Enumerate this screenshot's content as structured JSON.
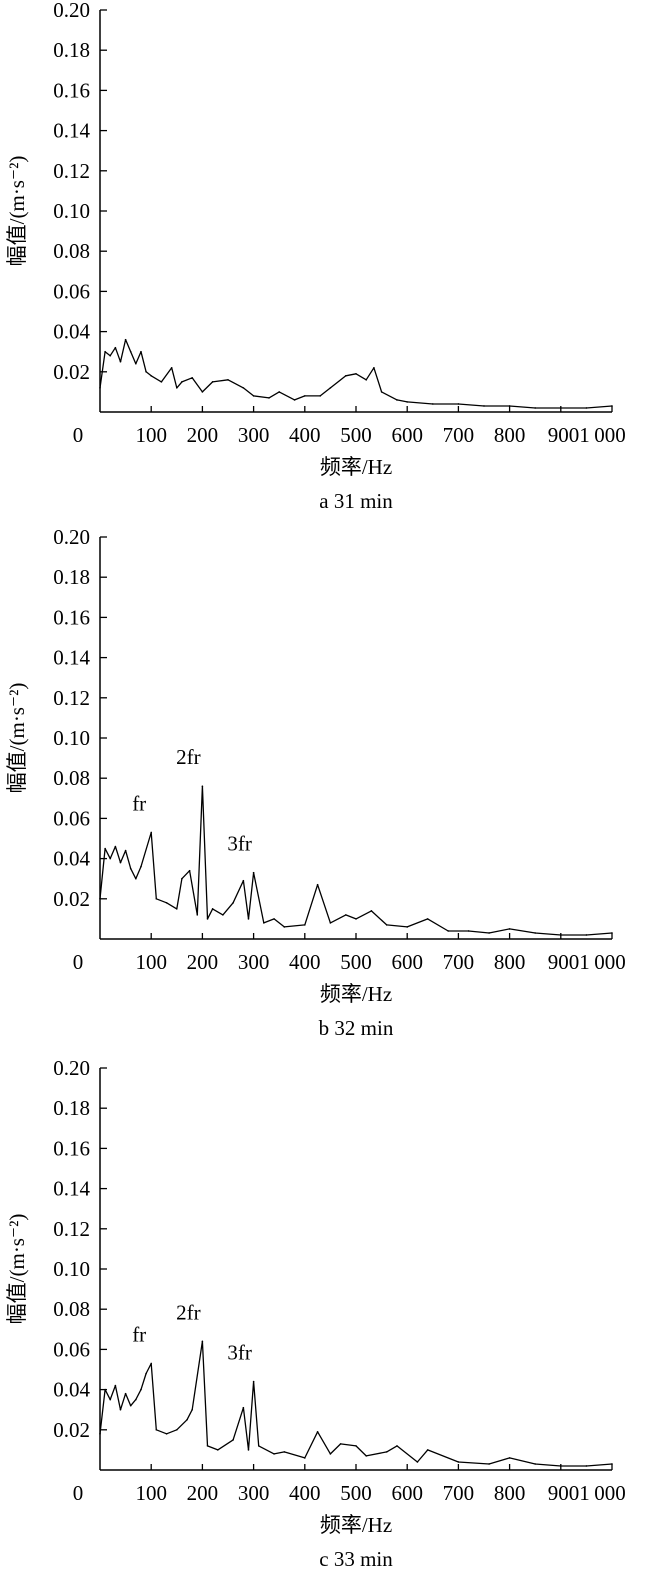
{
  "chart_data": [
    {
      "type": "line",
      "panel": "a",
      "caption": "a  31 min",
      "xlabel": "频率/Hz",
      "ylabel": "幅值/(m·s⁻²)",
      "xlim": [
        0,
        1000
      ],
      "ylim": [
        0,
        0.2
      ],
      "x_ticks": [
        "0",
        "100",
        "200",
        "300",
        "400",
        "500",
        "600",
        "700",
        "800",
        "9001",
        "000"
      ],
      "y_ticks": [
        "0.20",
        "0.18",
        "0.16",
        "0.14",
        "0.12",
        "0.10",
        "0.08",
        "0.06",
        "0.04",
        "0.02"
      ],
      "grid": false,
      "annotations": [],
      "series": [
        {
          "x": [
            0,
            10,
            20,
            30,
            40,
            50,
            60,
            70,
            80,
            90,
            100,
            120,
            140,
            150,
            160,
            180,
            200,
            220,
            250,
            280,
            300,
            330,
            350,
            380,
            400,
            430,
            450,
            480,
            500,
            520,
            535,
            550,
            580,
            600,
            650,
            700,
            750,
            800,
            850,
            900,
            950,
            1000
          ],
          "y": [
            0.012,
            0.03,
            0.028,
            0.032,
            0.025,
            0.036,
            0.03,
            0.024,
            0.03,
            0.02,
            0.018,
            0.015,
            0.022,
            0.012,
            0.015,
            0.017,
            0.01,
            0.015,
            0.016,
            0.012,
            0.008,
            0.007,
            0.01,
            0.006,
            0.008,
            0.008,
            0.012,
            0.018,
            0.019,
            0.016,
            0.022,
            0.01,
            0.006,
            0.005,
            0.004,
            0.004,
            0.003,
            0.003,
            0.002,
            0.002,
            0.002,
            0.003
          ]
        }
      ]
    },
    {
      "type": "line",
      "panel": "b",
      "caption": "b  32 min",
      "xlabel": "频率/Hz",
      "ylabel": "幅值/(m·s⁻²)",
      "xlim": [
        0,
        1000
      ],
      "ylim": [
        0,
        0.2
      ],
      "x_ticks": [
        "0",
        "100",
        "200",
        "300",
        "400",
        "500",
        "600",
        "700",
        "800",
        "9001",
        "000"
      ],
      "y_ticks": [
        "0.20",
        "0.18",
        "0.16",
        "0.14",
        "0.12",
        "0.10",
        "0.08",
        "0.06",
        "0.04",
        "0.02"
      ],
      "grid": false,
      "annotations": [
        {
          "text": "fr",
          "x": 100,
          "y": 0.053
        },
        {
          "text": "2fr",
          "x": 200,
          "y": 0.076
        },
        {
          "text": "3fr",
          "x": 300,
          "y": 0.033
        }
      ],
      "series": [
        {
          "x": [
            0,
            10,
            20,
            30,
            40,
            50,
            60,
            70,
            80,
            100,
            110,
            130,
            150,
            160,
            175,
            190,
            200,
            210,
            220,
            240,
            260,
            280,
            290,
            300,
            320,
            340,
            360,
            400,
            425,
            450,
            480,
            500,
            530,
            560,
            600,
            640,
            680,
            720,
            760,
            800,
            850,
            900,
            950,
            1000
          ],
          "y": [
            0.02,
            0.045,
            0.04,
            0.046,
            0.038,
            0.044,
            0.035,
            0.03,
            0.036,
            0.053,
            0.02,
            0.018,
            0.015,
            0.03,
            0.034,
            0.012,
            0.076,
            0.01,
            0.015,
            0.012,
            0.018,
            0.029,
            0.01,
            0.033,
            0.008,
            0.01,
            0.006,
            0.007,
            0.027,
            0.008,
            0.012,
            0.01,
            0.014,
            0.007,
            0.006,
            0.01,
            0.004,
            0.004,
            0.003,
            0.005,
            0.003,
            0.002,
            0.002,
            0.003
          ]
        }
      ]
    },
    {
      "type": "line",
      "panel": "c",
      "caption": "c  33 min",
      "xlabel": "频率/Hz",
      "ylabel": "幅值/(m·s⁻²)",
      "xlim": [
        0,
        1000
      ],
      "ylim": [
        0,
        0.2
      ],
      "x_ticks": [
        "0",
        "100",
        "200",
        "300",
        "400",
        "500",
        "600",
        "700",
        "800",
        "9001",
        "000"
      ],
      "y_ticks": [
        "0.20",
        "0.18",
        "0.16",
        "0.14",
        "0.12",
        "0.10",
        "0.08",
        "0.06",
        "0.04",
        "0.02"
      ],
      "grid": false,
      "annotations": [
        {
          "text": "fr",
          "x": 100,
          "y": 0.053
        },
        {
          "text": "2fr",
          "x": 200,
          "y": 0.064
        },
        {
          "text": "3fr",
          "x": 300,
          "y": 0.044
        }
      ],
      "series": [
        {
          "x": [
            0,
            10,
            20,
            30,
            40,
            50,
            60,
            70,
            80,
            90,
            100,
            110,
            130,
            150,
            170,
            180,
            200,
            210,
            230,
            260,
            280,
            290,
            300,
            310,
            340,
            360,
            400,
            425,
            450,
            470,
            500,
            520,
            560,
            580,
            620,
            640,
            700,
            760,
            800,
            850,
            900,
            950,
            1000
          ],
          "y": [
            0.018,
            0.04,
            0.035,
            0.042,
            0.03,
            0.038,
            0.032,
            0.035,
            0.04,
            0.048,
            0.053,
            0.02,
            0.018,
            0.02,
            0.025,
            0.03,
            0.064,
            0.012,
            0.01,
            0.015,
            0.031,
            0.01,
            0.044,
            0.012,
            0.008,
            0.009,
            0.006,
            0.019,
            0.008,
            0.013,
            0.012,
            0.007,
            0.009,
            0.012,
            0.004,
            0.01,
            0.004,
            0.003,
            0.006,
            0.003,
            0.002,
            0.002,
            0.003
          ]
        }
      ]
    }
  ]
}
